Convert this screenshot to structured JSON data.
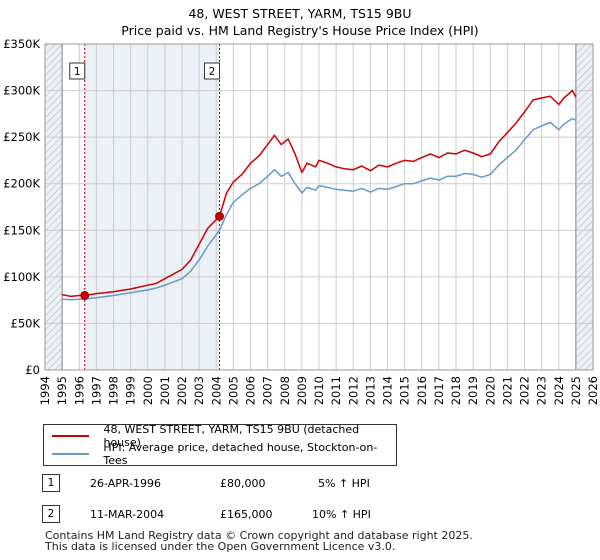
{
  "title_line1": "48, WEST STREET, YARM, TS15 9BU",
  "title_line2": "Price paid vs. HM Land Registry's House Price Index (HPI)",
  "colors": {
    "property": "#cc0000",
    "hpi": "#6699cc",
    "grid": "#cccccc",
    "shade": "#dce6f2"
  },
  "legend": [
    {
      "label": "48, WEST STREET, YARM, TS15 9BU (detached house)",
      "color": "#cc0000"
    },
    {
      "label": "HPI: Average price, detached house, Stockton-on-Tees",
      "color": "#6699cc"
    }
  ],
  "sales": [
    {
      "num": "1",
      "date": "26-APR-1996",
      "price": "£80,000",
      "hpi_note": "5% ↑ HPI"
    },
    {
      "num": "2",
      "date": "11-MAR-2004",
      "price": "£165,000",
      "hpi_note": "10% ↑ HPI"
    }
  ],
  "footer_line1": "Contains HM Land Registry data © Crown copyright and database right 2025.",
  "footer_line2": "This data is licensed under the Open Government Licence v3.0.",
  "chart_data": {
    "type": "line",
    "xlim": [
      1994,
      2026
    ],
    "ylim": [
      0,
      350000
    ],
    "x_ticks": [
      "1994",
      "1995",
      "1996",
      "1997",
      "1998",
      "1999",
      "2000",
      "2001",
      "2002",
      "2003",
      "2004",
      "2005",
      "2006",
      "2007",
      "2008",
      "2009",
      "2010",
      "2011",
      "2012",
      "2013",
      "2014",
      "2015",
      "2016",
      "2017",
      "2018",
      "2019",
      "2020",
      "2021",
      "2022",
      "2023",
      "2024",
      "2025",
      "2026"
    ],
    "y_ticks": [
      {
        "value": 0,
        "label": "£0"
      },
      {
        "value": 50000,
        "label": "£50K"
      },
      {
        "value": 100000,
        "label": "£100K"
      },
      {
        "value": 150000,
        "label": "£150K"
      },
      {
        "value": 200000,
        "label": "£200K"
      },
      {
        "value": 250000,
        "label": "£250K"
      },
      {
        "value": 300000,
        "label": "£300K"
      },
      {
        "value": 350000,
        "label": "£350K"
      }
    ],
    "data_range": [
      1995,
      2025.0
    ],
    "shaded_regions": [
      {
        "from": 1994,
        "to": 1995
      },
      {
        "from": 1996.32,
        "to": 2004.19
      },
      {
        "from": 2025.0,
        "to": 2026
      }
    ],
    "markers": [
      {
        "label": "1",
        "x": 1996.32,
        "y": 80000
      },
      {
        "label": "2",
        "x": 2004.19,
        "y": 165000
      }
    ],
    "series": [
      {
        "name": "48, WEST STREET, YARM, TS15 9BU (detached house)",
        "color": "#cc0000",
        "points": [
          [
            1995,
            81000
          ],
          [
            1995.5,
            79000
          ],
          [
            1996,
            80000
          ],
          [
            1996.32,
            80000
          ],
          [
            1997,
            82000
          ],
          [
            1998,
            84000
          ],
          [
            1999,
            87000
          ],
          [
            2000,
            91000
          ],
          [
            2000.5,
            93000
          ],
          [
            2001,
            98000
          ],
          [
            2002,
            108000
          ],
          [
            2002.5,
            118000
          ],
          [
            2003,
            135000
          ],
          [
            2003.5,
            152000
          ],
          [
            2004.19,
            165000
          ],
          [
            2004.6,
            190000
          ],
          [
            2005,
            202000
          ],
          [
            2005.5,
            210000
          ],
          [
            2006,
            222000
          ],
          [
            2006.5,
            230000
          ],
          [
            2007,
            242000
          ],
          [
            2007.4,
            252000
          ],
          [
            2007.8,
            242000
          ],
          [
            2008.2,
            248000
          ],
          [
            2008.6,
            232000
          ],
          [
            2009,
            212000
          ],
          [
            2009.3,
            222000
          ],
          [
            2009.8,
            218000
          ],
          [
            2010,
            225000
          ],
          [
            2010.5,
            222000
          ],
          [
            2011,
            218000
          ],
          [
            2011.5,
            216000
          ],
          [
            2012,
            215000
          ],
          [
            2012.5,
            219000
          ],
          [
            2013,
            214000
          ],
          [
            2013.5,
            220000
          ],
          [
            2014,
            218000
          ],
          [
            2014.5,
            222000
          ],
          [
            2015,
            225000
          ],
          [
            2015.5,
            224000
          ],
          [
            2016,
            228000
          ],
          [
            2016.5,
            232000
          ],
          [
            2017,
            228000
          ],
          [
            2017.5,
            233000
          ],
          [
            2018,
            232000
          ],
          [
            2018.5,
            236000
          ],
          [
            2019,
            233000
          ],
          [
            2019.5,
            229000
          ],
          [
            2020,
            232000
          ],
          [
            2020.5,
            245000
          ],
          [
            2021,
            255000
          ],
          [
            2021.5,
            265000
          ],
          [
            2022,
            277000
          ],
          [
            2022.5,
            290000
          ],
          [
            2023,
            292000
          ],
          [
            2023.5,
            294000
          ],
          [
            2024,
            285000
          ],
          [
            2024.3,
            292000
          ],
          [
            2024.8,
            300000
          ],
          [
            2025.0,
            293000
          ]
        ]
      },
      {
        "name": "HPI: Average price, detached house, Stockton-on-Tees",
        "color": "#6699cc",
        "points": [
          [
            1995,
            76000
          ],
          [
            1995.5,
            75500
          ],
          [
            1996,
            76000
          ],
          [
            1996.32,
            76200
          ],
          [
            1997,
            77500
          ],
          [
            1998,
            80000
          ],
          [
            1999,
            83000
          ],
          [
            2000,
            86000
          ],
          [
            2000.5,
            88000
          ],
          [
            2001,
            91000
          ],
          [
            2002,
            98000
          ],
          [
            2002.5,
            106000
          ],
          [
            2003,
            118000
          ],
          [
            2003.5,
            133000
          ],
          [
            2004.19,
            150000
          ],
          [
            2004.6,
            167000
          ],
          [
            2005,
            180000
          ],
          [
            2005.5,
            188000
          ],
          [
            2006,
            195000
          ],
          [
            2006.5,
            200000
          ],
          [
            2007,
            208000
          ],
          [
            2007.4,
            215000
          ],
          [
            2007.8,
            208000
          ],
          [
            2008.2,
            212000
          ],
          [
            2008.6,
            200000
          ],
          [
            2009,
            190000
          ],
          [
            2009.3,
            196000
          ],
          [
            2009.8,
            193000
          ],
          [
            2010,
            198000
          ],
          [
            2010.5,
            196000
          ],
          [
            2011,
            194000
          ],
          [
            2011.5,
            193000
          ],
          [
            2012,
            192000
          ],
          [
            2012.5,
            195000
          ],
          [
            2013,
            191000
          ],
          [
            2013.5,
            195000
          ],
          [
            2014,
            194000
          ],
          [
            2014.5,
            197000
          ],
          [
            2015,
            200000
          ],
          [
            2015.5,
            200000
          ],
          [
            2016,
            203000
          ],
          [
            2016.5,
            206000
          ],
          [
            2017,
            204000
          ],
          [
            2017.5,
            208000
          ],
          [
            2018,
            208000
          ],
          [
            2018.5,
            211000
          ],
          [
            2019,
            210000
          ],
          [
            2019.5,
            207000
          ],
          [
            2020,
            210000
          ],
          [
            2020.5,
            220000
          ],
          [
            2021,
            228000
          ],
          [
            2021.5,
            236000
          ],
          [
            2022,
            247000
          ],
          [
            2022.5,
            258000
          ],
          [
            2023,
            262000
          ],
          [
            2023.5,
            266000
          ],
          [
            2024,
            258000
          ],
          [
            2024.3,
            264000
          ],
          [
            2024.8,
            270000
          ],
          [
            2025.0,
            268000
          ]
        ]
      }
    ]
  }
}
